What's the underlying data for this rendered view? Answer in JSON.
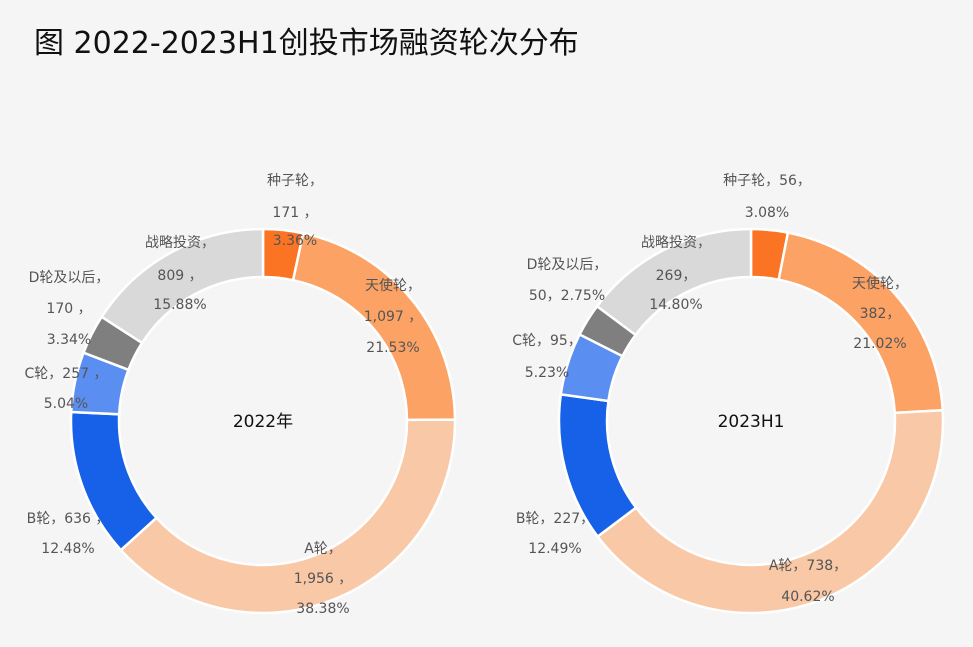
{
  "title": "图 2022-2023H1创投市场融资轮次分布",
  "chart_data": [
    {
      "type": "pie",
      "donut": true,
      "center_label": "2022年",
      "categories": [
        "种子轮",
        "天使轮",
        "A轮",
        "B轮",
        "C轮",
        "D轮及以后",
        "战略投资"
      ],
      "values": [
        171,
        1097,
        1956,
        636,
        257,
        170,
        809
      ],
      "value_labels": [
        "171",
        "1,097",
        "1,956",
        "636",
        "257",
        "170",
        "809"
      ],
      "percents": [
        "3.36%",
        "21.53%",
        "38.38%",
        "12.48%",
        "5.04%",
        "3.34%",
        "15.88%"
      ],
      "colors": [
        "#fb7423",
        "#fba264",
        "#f9c8a6",
        "#1661e8",
        "#5a8ef0",
        "#7f7f7f",
        "#d9d9d9"
      ]
    },
    {
      "type": "pie",
      "donut": true,
      "center_label": "2023H1",
      "categories": [
        "种子轮",
        "天使轮",
        "A轮",
        "B轮",
        "C轮",
        "D轮及以后",
        "战略投资"
      ],
      "values": [
        56,
        382,
        738,
        227,
        95,
        50,
        269
      ],
      "value_labels": [
        "56",
        "382",
        "738",
        "227",
        "95",
        "50",
        "269"
      ],
      "percents": [
        "3.08%",
        "21.02%",
        "40.62%",
        "12.49%",
        "5.23%",
        "2.75%",
        "14.80%"
      ],
      "colors": [
        "#fb7423",
        "#fba264",
        "#f9c8a6",
        "#1661e8",
        "#5a8ef0",
        "#7f7f7f",
        "#d9d9d9"
      ]
    }
  ]
}
